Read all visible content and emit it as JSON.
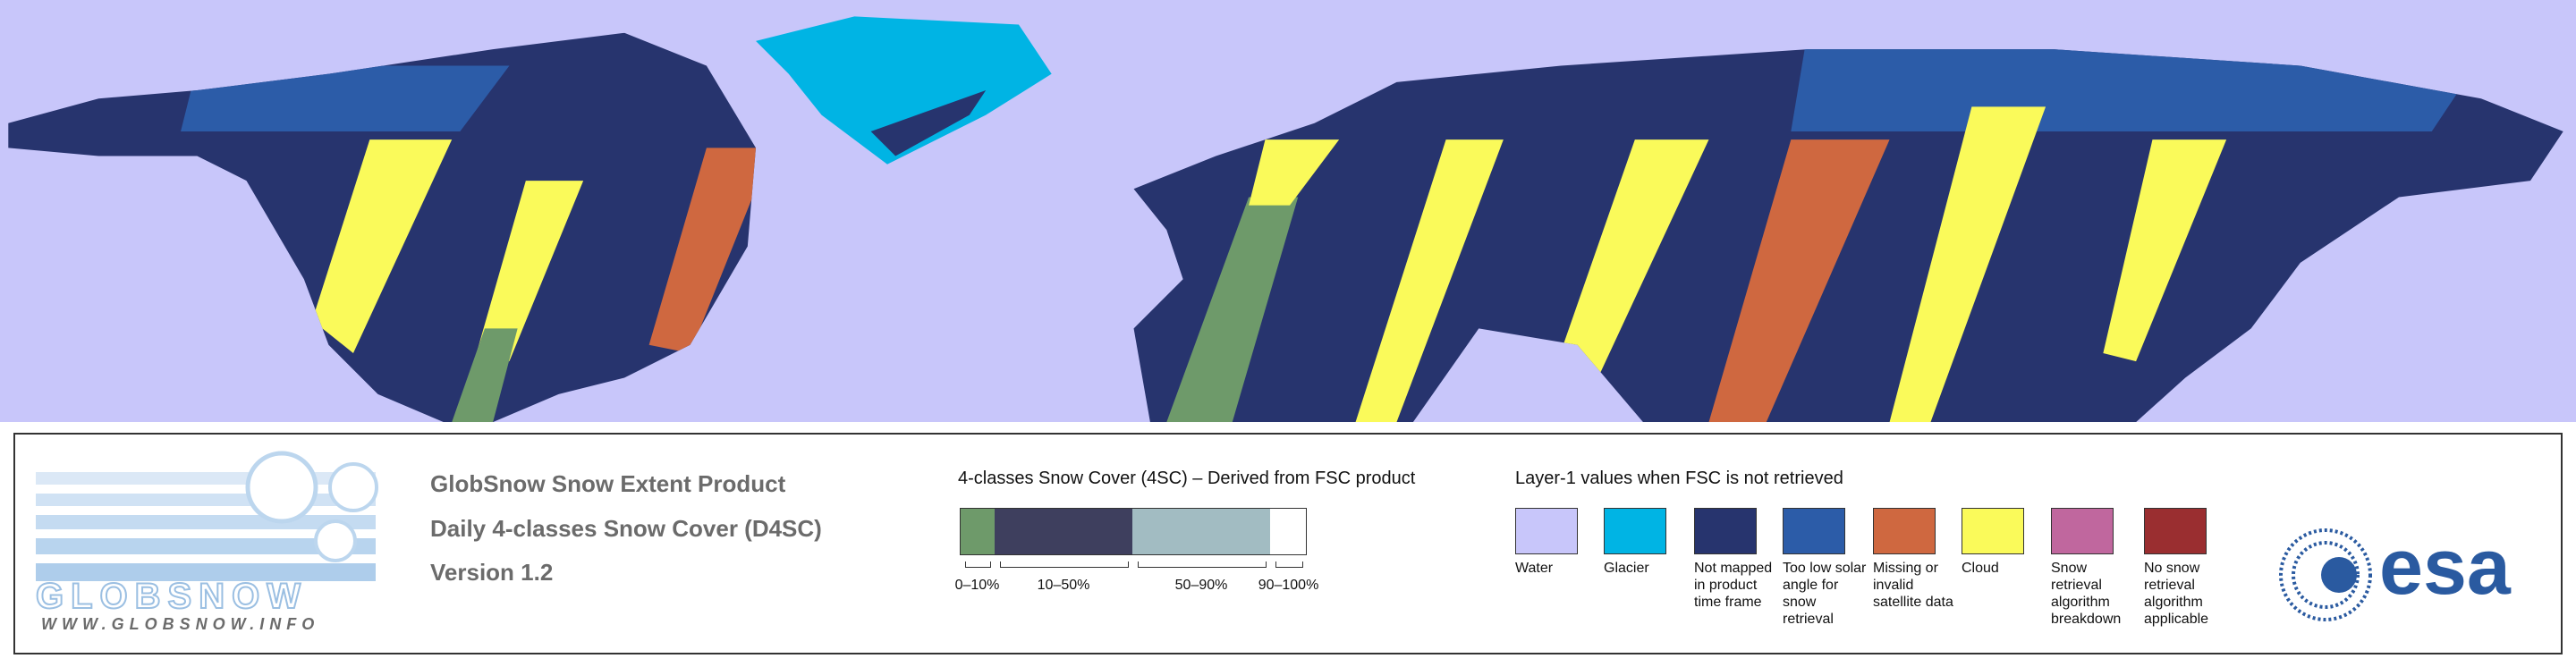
{
  "logo": {
    "name": "GLOBSNOW",
    "url": "WWW.GLOBSNOW.INFO"
  },
  "product": {
    "lines": [
      "GlobSnow Snow Extent Product",
      "Daily 4-classes Snow Cover (D4SC)",
      "Version 1.2"
    ]
  },
  "fsc_legend": {
    "title": "4-classes Snow Cover (4SC) – Derived from FSC product",
    "classes": [
      {
        "label": "0–10%",
        "color": "#6e9a6a"
      },
      {
        "label": "10–50%",
        "color": "#3e3f5e"
      },
      {
        "label": "50–90%",
        "color": "#a2bcc2"
      },
      {
        "label": "90–100%",
        "color": "#ffffff"
      }
    ]
  },
  "layer1_legend": {
    "title": "Layer-1 values when FSC is not retrieved",
    "items": [
      {
        "label": "Water",
        "color": "#c8c6fa"
      },
      {
        "label": "Glacier",
        "color": "#00b4e4"
      },
      {
        "label": "Not mapped in product time frame",
        "color": "#27346e"
      },
      {
        "label": "Too low solar angle for snow retrieval",
        "color": "#2c5ca8"
      },
      {
        "label": "Missing or invalid satellite data",
        "color": "#cf6840"
      },
      {
        "label": "Cloud",
        "color": "#fafa5a"
      },
      {
        "label": "Snow retrieval algorithm breakdown",
        "color": "#c0679e"
      },
      {
        "label": "No snow retrieval algorithm applicable",
        "color": "#9a2e30"
      }
    ]
  },
  "agency": "esa"
}
